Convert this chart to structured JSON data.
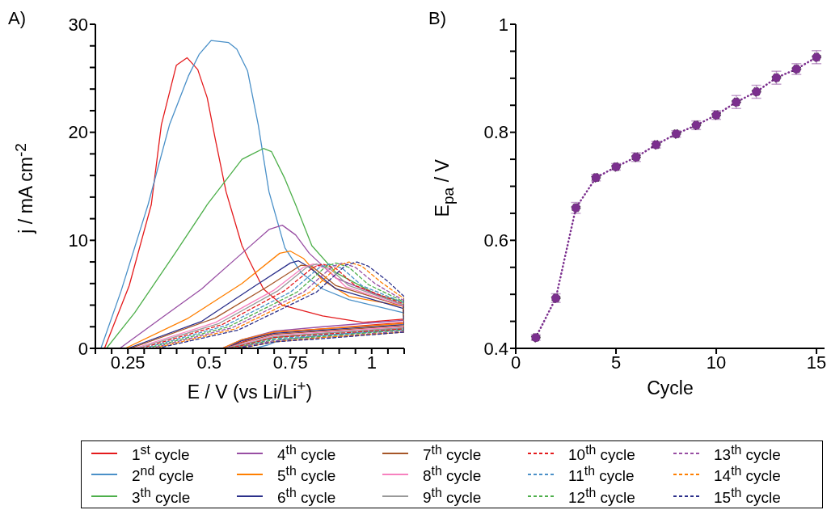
{
  "chart_data": [
    {
      "type": "line",
      "annotations": [
        "A)"
      ],
      "xlabel": "E / V (vs Li/Li$^{+}$)",
      "ylabel": "j / mA cm$^{-2}$",
      "xlim": [
        0.15,
        1.1
      ],
      "xticks": [
        {
          "value": 0.15,
          "label": null
        },
        {
          "value": 0.2,
          "label": null
        },
        0.25,
        {
          "value": 0.3,
          "label": null
        },
        {
          "value": 0.35,
          "label": null
        },
        {
          "value": 0.4,
          "label": null
        },
        {
          "value": 0.45,
          "label": null
        },
        0.5,
        {
          "value": 0.55,
          "label": null
        },
        {
          "value": 0.6,
          "label": null
        },
        {
          "value": 0.65,
          "label": null
        },
        {
          "value": 0.7,
          "label": null
        },
        0.75,
        {
          "value": 0.8,
          "label": null
        },
        {
          "value": 0.85,
          "label": null
        },
        {
          "value": 0.9,
          "label": null
        },
        {
          "value": 0.95,
          "label": null
        },
        1,
        {
          "value": 1.05,
          "label": null
        },
        {
          "value": 1.1,
          "label": null
        }
      ],
      "ylim": [
        0,
        30
      ],
      "yticks": [
        0,
        {
          "value": 2,
          "label": null
        },
        {
          "value": 4,
          "label": null
        },
        {
          "value": 6,
          "label": null
        },
        {
          "value": 8,
          "label": null
        },
        10,
        {
          "value": 12,
          "label": null
        },
        {
          "value": 14,
          "label": null
        },
        {
          "value": 16,
          "label": null
        },
        {
          "value": 18,
          "label": null
        },
        20,
        {
          "value": 22,
          "label": null
        },
        {
          "value": 24,
          "label": null
        },
        {
          "value": 26,
          "label": null
        },
        {
          "value": 28,
          "label": null
        },
        30
      ],
      "legend": "bottom",
      "series": [
        {
          "name": "1$^{st}$ cycle",
          "color": "#e41a1c",
          "x": [
            0.178,
            0.254,
            0.322,
            0.353,
            0.399,
            0.432,
            0.465,
            0.494,
            0.518,
            0.552,
            0.601,
            0.667,
            0.725,
            0.849,
            0.973,
            1.097,
            1.1,
            0.85,
            0.7,
            0.62,
            0.55
          ],
          "values": [
            0,
            5.8,
            13.3,
            20.7,
            26.2,
            26.9,
            25.8,
            23.2,
            19.5,
            14.5,
            9.5,
            5.5,
            4.0,
            3.0,
            2.4,
            2.7,
            2.4,
            1.8,
            1.5,
            0.8,
            0
          ]
        },
        {
          "name": "2$^{nd}$ cycle",
          "color": "#4a90c8",
          "x": [
            0.167,
            0.229,
            0.312,
            0.378,
            0.436,
            0.469,
            0.506,
            0.56,
            0.585,
            0.618,
            0.651,
            0.684,
            0.733,
            0.783,
            0.849,
            0.931,
            1.097,
            1.1,
            0.85,
            0.72,
            0.68,
            0.64
          ],
          "values": [
            0,
            5.3,
            13.3,
            20.7,
            25.2,
            27.2,
            28.5,
            28.3,
            27.7,
            25.7,
            20.7,
            14.5,
            9.3,
            7.0,
            5.5,
            4.5,
            3.3,
            1.8,
            1.2,
            0.8,
            0.3,
            0
          ]
        },
        {
          "name": "3$^{th}$ cycle",
          "color": "#4daf4a",
          "x": [
            0.184,
            0.271,
            0.395,
            0.494,
            0.601,
            0.634,
            0.667,
            0.692,
            0.733,
            0.766,
            0.816,
            0.89,
            1.014,
            1.097,
            1.1,
            0.85,
            0.7,
            0.6,
            0.55
          ],
          "values": [
            0,
            3.3,
            8.8,
            13.3,
            17.5,
            18.0,
            18.5,
            18.2,
            15.7,
            13.3,
            9.5,
            7.0,
            5.0,
            4.3,
            1.9,
            1.4,
            1.0,
            0.3,
            0
          ]
        },
        {
          "name": "4$^{th}$ cycle",
          "color": "#984ea3",
          "x": [
            0.225,
            0.353,
            0.477,
            0.601,
            0.684,
            0.725,
            0.766,
            0.808,
            0.89,
            1.097,
            1.1,
            0.85,
            0.7,
            0.6,
            0.54
          ],
          "values": [
            0,
            2.8,
            5.5,
            8.8,
            11.0,
            11.4,
            10.5,
            8.8,
            6.5,
            4.0,
            2.6,
            2.0,
            1.6,
            0.8,
            0
          ]
        },
        {
          "name": "5$^{th}$ cycle",
          "color": "#ff7f00",
          "x": [
            0.242,
            0.436,
            0.601,
            0.717,
            0.75,
            0.791,
            0.849,
            0.931,
            1.097,
            1.1,
            0.85,
            0.7,
            0.6,
            0.54
          ],
          "values": [
            0,
            2.8,
            6.0,
            8.8,
            9.0,
            8.3,
            6.3,
            4.8,
            3.9,
            2.3,
            1.8,
            1.5,
            0.8,
            0
          ]
        },
        {
          "name": "6$^{th}$ cycle",
          "color": "#2b2f8a",
          "x": [
            0.25,
            0.477,
            0.642,
            0.75,
            0.775,
            0.808,
            0.89,
            1.097,
            1.1,
            0.85,
            0.7,
            0.6,
            0.55
          ],
          "values": [
            0,
            2.5,
            5.8,
            7.9,
            8.1,
            7.5,
            5.5,
            3.7,
            2.2,
            1.7,
            1.4,
            0.7,
            0
          ]
        },
        {
          "name": "7$^{th}$ cycle",
          "color": "#a65628",
          "x": [
            0.258,
            0.518,
            0.684,
            0.783,
            0.816,
            0.89,
            1.097,
            1.1,
            0.85,
            0.7,
            0.61,
            0.55
          ],
          "values": [
            0,
            2.8,
            5.8,
            7.7,
            7.6,
            5.8,
            3.9,
            2.1,
            1.6,
            1.3,
            0.6,
            0
          ]
        },
        {
          "name": "8$^{th}$ cycle",
          "color": "#f781bf",
          "x": [
            0.27,
            0.52,
            0.7,
            0.79,
            0.82,
            0.86,
            0.92,
            1.1,
            1.1,
            0.85,
            0.7,
            0.61,
            0.55
          ],
          "values": [
            0,
            2.4,
            5.4,
            7.5,
            7.8,
            7.4,
            5.7,
            3.9,
            2.0,
            1.5,
            1.2,
            0.5,
            0
          ]
        },
        {
          "name": "9$^{th}$ cycle",
          "color": "#999999",
          "x": [
            0.28,
            0.53,
            0.71,
            0.8,
            0.83,
            0.87,
            0.93,
            1.1,
            1.1,
            0.85,
            0.7,
            0.61,
            0.55
          ],
          "values": [
            0,
            2.3,
            5.3,
            7.5,
            7.8,
            7.4,
            5.8,
            4.0,
            1.9,
            1.4,
            1.1,
            0.4,
            0
          ]
        },
        {
          "name": "10$^{th}$ cycle",
          "color": "#e41a1c",
          "line_style": "dashed",
          "x": [
            0.29,
            0.54,
            0.73,
            0.82,
            0.85,
            0.89,
            0.95,
            1.1,
            1.1,
            0.85,
            0.7,
            0.62,
            0.56
          ],
          "values": [
            0,
            2.2,
            5.3,
            7.5,
            7.8,
            7.4,
            5.8,
            4.1,
            1.8,
            1.3,
            1.0,
            0.4,
            0
          ]
        },
        {
          "name": "11$^{th}$ cycle",
          "color": "#4a90c8",
          "line_style": "dashed",
          "x": [
            0.3,
            0.55,
            0.75,
            0.84,
            0.87,
            0.91,
            0.97,
            1.1,
            1.1,
            0.85,
            0.7,
            0.62,
            0.585
          ],
          "values": [
            0,
            2.1,
            5.2,
            7.5,
            7.8,
            7.4,
            5.8,
            4.2,
            1.7,
            1.2,
            0.9,
            0.3,
            0
          ]
        },
        {
          "name": "12$^{th}$ cycle",
          "color": "#4daf4a",
          "line_style": "dashed",
          "x": [
            0.31,
            0.56,
            0.77,
            0.86,
            0.89,
            0.93,
            0.99,
            1.1,
            1.1,
            0.85,
            0.7,
            0.62,
            0.57
          ],
          "values": [
            0,
            2.0,
            5.2,
            7.6,
            7.9,
            7.5,
            5.9,
            4.3,
            1.7,
            1.1,
            0.8,
            0.3,
            0
          ]
        },
        {
          "name": "13$^{th}$ cycle",
          "color": "#984ea3",
          "line_style": "dashed",
          "x": [
            0.32,
            0.57,
            0.79,
            0.88,
            0.91,
            0.95,
            1.01,
            1.1,
            1.1,
            0.85,
            0.7,
            0.63,
            0.57
          ],
          "values": [
            0,
            1.9,
            5.2,
            7.6,
            7.9,
            7.5,
            6.0,
            4.4,
            1.6,
            1.0,
            0.7,
            0.3,
            0
          ]
        },
        {
          "name": "14$^{th}$ cycle",
          "color": "#ff7f00",
          "line_style": "dashed",
          "x": [
            0.33,
            0.58,
            0.81,
            0.9,
            0.93,
            0.97,
            1.03,
            1.1,
            1.1,
            0.85,
            0.7,
            0.63,
            0.58
          ],
          "values": [
            0,
            1.8,
            5.2,
            7.7,
            8.0,
            7.6,
            6.1,
            4.6,
            1.5,
            1.0,
            0.6,
            0.2,
            0
          ]
        },
        {
          "name": "15$^{th}$ cycle",
          "color": "#2b2f8a",
          "line_style": "dashed",
          "x": [
            0.34,
            0.59,
            0.83,
            0.92,
            0.955,
            0.99,
            1.05,
            1.1,
            1.1,
            0.85,
            0.7,
            0.63,
            0.58
          ],
          "values": [
            0,
            1.7,
            5.2,
            7.7,
            8.0,
            7.6,
            6.2,
            4.8,
            1.5,
            0.9,
            0.6,
            0.2,
            0
          ]
        }
      ]
    },
    {
      "type": "line",
      "annotations": [
        "B)"
      ],
      "xlabel": "Cycle",
      "ylabel": "E$_{pa}$ / V",
      "x": [
        1,
        2,
        3,
        4,
        5,
        6,
        7,
        8,
        9,
        10,
        11,
        12,
        13,
        14,
        15
      ],
      "xlim": [
        0,
        15.4
      ],
      "xticks": [
        0,
        5,
        10,
        15
      ],
      "ylim": [
        0.4,
        1
      ],
      "yticks": [
        0.4,
        {
          "value": 0.45,
          "label": null
        },
        {
          "value": 0.5,
          "label": null
        },
        {
          "value": 0.55,
          "label": null
        },
        0.6,
        {
          "value": 0.65,
          "label": null
        },
        {
          "value": 0.7,
          "label": null
        },
        {
          "value": 0.75,
          "label": null
        },
        0.8,
        {
          "value": 0.85,
          "label": null
        },
        {
          "value": 0.9,
          "label": null
        },
        {
          "value": 0.95,
          "label": null
        },
        1
      ],
      "marker": "circle",
      "line_style": "dotted",
      "series": [
        {
          "color": "#7b2f8e",
          "values": [
            0.42,
            0.493,
            0.66,
            0.716,
            0.736,
            0.754,
            0.777,
            0.797,
            0.813,
            0.832,
            0.856,
            0.875,
            0.901,
            0.917,
            0.939
          ],
          "errors": [
            0.005,
            0.008,
            0.01,
            0.006,
            0.006,
            0.008,
            0.006,
            0.006,
            0.008,
            0.008,
            0.012,
            0.012,
            0.012,
            0.01,
            0.012
          ]
        }
      ]
    }
  ]
}
